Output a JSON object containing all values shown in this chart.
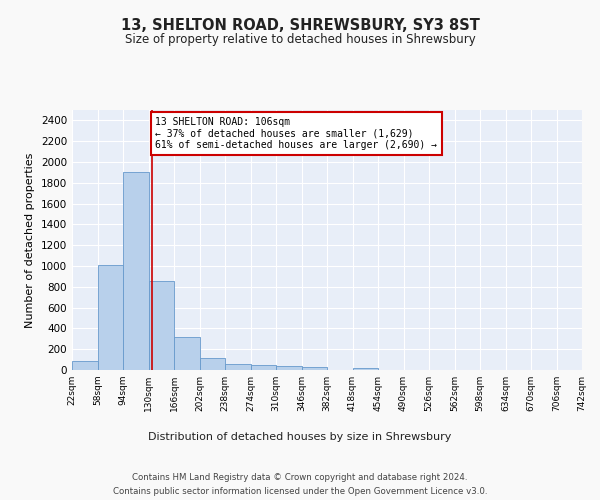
{
  "title": "13, SHELTON ROAD, SHREWSBURY, SY3 8ST",
  "subtitle": "Size of property relative to detached houses in Shrewsbury",
  "xlabel": "Distribution of detached houses by size in Shrewsbury",
  "ylabel": "Number of detached properties",
  "bar_values": [
    90,
    1010,
    1900,
    860,
    320,
    115,
    55,
    50,
    35,
    25,
    0,
    20,
    0,
    0,
    0,
    0,
    0,
    0,
    0,
    0
  ],
  "bin_labels": [
    "22sqm",
    "58sqm",
    "94sqm",
    "130sqm",
    "166sqm",
    "202sqm",
    "238sqm",
    "274sqm",
    "310sqm",
    "346sqm",
    "382sqm",
    "418sqm",
    "454sqm",
    "490sqm",
    "526sqm",
    "562sqm",
    "598sqm",
    "634sqm",
    "670sqm",
    "706sqm",
    "742sqm"
  ],
  "bar_color": "#b8d0eb",
  "bar_edge_color": "#6699cc",
  "background_color": "#e8eef8",
  "grid_color": "#ffffff",
  "vline_x_bar_index": 2.62,
  "vline_color": "#cc0000",
  "annotation_text": "13 SHELTON ROAD: 106sqm\n← 37% of detached houses are smaller (1,629)\n61% of semi-detached houses are larger (2,690) →",
  "annotation_box_facecolor": "#ffffff",
  "annotation_box_edgecolor": "#cc0000",
  "ylim": [
    0,
    2500
  ],
  "yticks": [
    0,
    200,
    400,
    600,
    800,
    1000,
    1200,
    1400,
    1600,
    1800,
    2000,
    2200,
    2400
  ],
  "footnote_line1": "Contains HM Land Registry data © Crown copyright and database right 2024.",
  "footnote_line2": "Contains public sector information licensed under the Open Government Licence v3.0.",
  "fig_facecolor": "#f9f9f9"
}
